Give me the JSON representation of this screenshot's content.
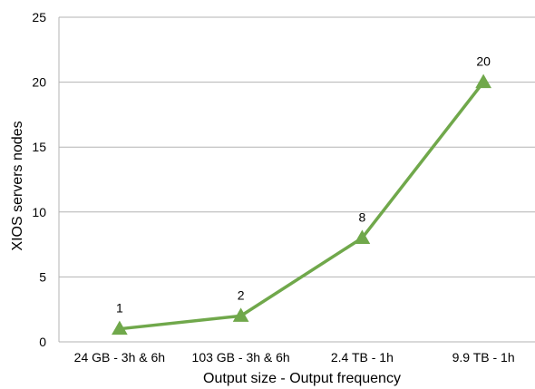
{
  "chart_data": {
    "type": "line",
    "categories": [
      "24 GB - 3h & 6h",
      "103 GB - 3h & 6h",
      "2.4 TB - 1h",
      "9.9 TB - 1h"
    ],
    "series": [
      {
        "values": [
          1,
          2,
          8,
          20
        ],
        "color": "#70a84b",
        "marker": "triangle"
      }
    ],
    "data_labels": [
      "1",
      "2",
      "8",
      "20"
    ],
    "xlabel": "Output size - Output frequency",
    "ylabel": "XIOS servers nodes",
    "ylim": [
      0,
      25
    ],
    "yticks": [
      0,
      5,
      10,
      15,
      20,
      25
    ],
    "grid": true,
    "gridline_color": "#b3b3b3",
    "legend": false
  }
}
